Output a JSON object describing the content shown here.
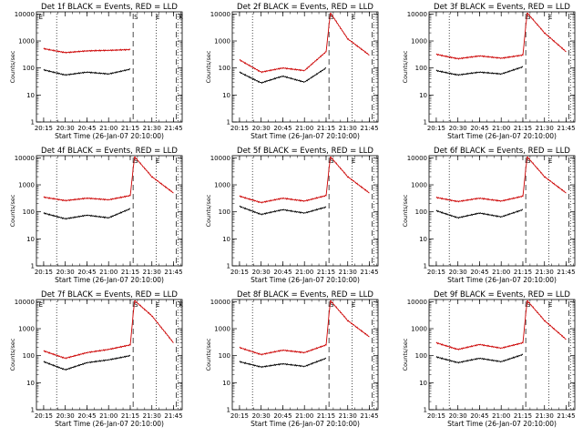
{
  "chart_data": [
    {
      "type": "line",
      "title": "Det 1f BLACK = Events, RED = LLD",
      "xlabel": "Start Time (26-Jan-07 20:10:00)",
      "ylabel": "Counts/sec",
      "x_tick_labels": [
        "20:15",
        "20:30",
        "20:45",
        "21:00",
        "21:15",
        "21:30",
        "21:45"
      ],
      "y_tick_labels": [
        "1",
        "10",
        "100",
        "1000",
        "10000"
      ],
      "ylim": [
        1,
        12000
      ],
      "yscale": "log",
      "flag_labels": [
        "E",
        "S",
        "E",
        "K"
      ],
      "x": [
        "20:15",
        "20:30",
        "20:45",
        "21:00",
        "21:15",
        "21:18",
        "21:30",
        "21:45"
      ],
      "series": [
        {
          "color": "#cc0000",
          "values": [
            520,
            370,
            430,
            450,
            480,
            null,
            null,
            null
          ]
        },
        {
          "color": "#000000",
          "values": [
            85,
            55,
            70,
            60,
            90,
            null,
            null,
            null
          ]
        }
      ]
    },
    {
      "type": "line",
      "title": "Det 2f BLACK = Events, RED = LLD",
      "xlabel": "Start Time (26-Jan-07 20:10:00)",
      "ylabel": "Counts/sec",
      "x_tick_labels": [
        "20:15",
        "20:30",
        "20:45",
        "21:00",
        "21:15",
        "21:30",
        "21:45"
      ],
      "y_tick_labels": [
        "1",
        "10",
        "100",
        "1000",
        "10000"
      ],
      "ylim": [
        1,
        12000
      ],
      "yscale": "log",
      "flag_labels": [
        "S",
        "E"
      ],
      "x": [
        "20:15",
        "20:30",
        "20:45",
        "21:00",
        "21:15",
        "21:18",
        "21:30",
        "21:45"
      ],
      "series": [
        {
          "color": "#cc0000",
          "values": [
            200,
            70,
            100,
            80,
            400,
            11000,
            1200,
            300
          ]
        },
        {
          "color": "#000000",
          "values": [
            70,
            28,
            50,
            30,
            100,
            null,
            null,
            null
          ]
        }
      ]
    },
    {
      "type": "line",
      "title": "Det 3f BLACK = Events, RED = LLD",
      "xlabel": "Start Time (26-Jan-07 20:10:00)",
      "ylabel": "Counts/sec",
      "x_tick_labels": [
        "20:15",
        "20:30",
        "20:45",
        "21:00",
        "21:15",
        "21:30",
        "21:45"
      ],
      "y_tick_labels": [
        "1",
        "10",
        "100",
        "1000",
        "10000"
      ],
      "ylim": [
        1,
        12000
      ],
      "yscale": "log",
      "flag_labels": [
        "S",
        "E"
      ],
      "x": [
        "20:15",
        "20:30",
        "20:45",
        "21:00",
        "21:15",
        "21:18",
        "21:30",
        "21:45"
      ],
      "series": [
        {
          "color": "#cc0000",
          "values": [
            320,
            220,
            280,
            230,
            300,
            11000,
            2000,
            400
          ]
        },
        {
          "color": "#000000",
          "values": [
            80,
            55,
            70,
            60,
            110,
            null,
            null,
            null
          ]
        }
      ]
    },
    {
      "type": "line",
      "title": "Det 4f BLACK = Events, RED = LLD",
      "xlabel": "Start Time (26-Jan-07 20:10:00)",
      "ylabel": "Counts/sec",
      "x_tick_labels": [
        "20:15",
        "20:30",
        "20:45",
        "21:00",
        "21:15",
        "21:30",
        "21:45"
      ],
      "y_tick_labels": [
        "1",
        "10",
        "100",
        "1000",
        "10000"
      ],
      "ylim": [
        1,
        12000
      ],
      "yscale": "log",
      "flag_labels": [
        "S",
        "E"
      ],
      "x": [
        "20:15",
        "20:30",
        "20:45",
        "21:00",
        "21:15",
        "21:18",
        "21:30",
        "21:45"
      ],
      "series": [
        {
          "color": "#cc0000",
          "values": [
            350,
            260,
            320,
            280,
            400,
            11000,
            2000,
            500
          ]
        },
        {
          "color": "#000000",
          "values": [
            90,
            55,
            75,
            60,
            130,
            null,
            null,
            null
          ]
        }
      ]
    },
    {
      "type": "line",
      "title": "Det 5f BLACK = Events, RED = LLD",
      "xlabel": "Start Time (26-Jan-07 20:10:00)",
      "ylabel": "Counts/sec",
      "x_tick_labels": [
        "20:15",
        "20:30",
        "20:45",
        "21:00",
        "21:15",
        "21:30",
        "21:45"
      ],
      "y_tick_labels": [
        "1",
        "10",
        "100",
        "1000",
        "10000"
      ],
      "ylim": [
        1,
        12000
      ],
      "yscale": "log",
      "flag_labels": [
        "S",
        "E"
      ],
      "x": [
        "20:15",
        "20:30",
        "20:45",
        "21:00",
        "21:15",
        "21:18",
        "21:30",
        "21:45"
      ],
      "series": [
        {
          "color": "#cc0000",
          "values": [
            380,
            220,
            320,
            250,
            400,
            11000,
            2000,
            500
          ]
        },
        {
          "color": "#000000",
          "values": [
            160,
            80,
            120,
            90,
            150,
            null,
            null,
            null
          ]
        }
      ]
    },
    {
      "type": "line",
      "title": "Det 6f BLACK = Events, RED = LLD",
      "xlabel": "Start Time (26-Jan-07 20:10:00)",
      "ylabel": "Counts/sec",
      "x_tick_labels": [
        "20:15",
        "20:30",
        "20:45",
        "21:00",
        "21:15",
        "21:30",
        "21:45"
      ],
      "y_tick_labels": [
        "1",
        "10",
        "100",
        "1000",
        "10000"
      ],
      "ylim": [
        1,
        12000
      ],
      "yscale": "log",
      "flag_labels": [
        "S",
        "E"
      ],
      "x": [
        "20:15",
        "20:30",
        "20:45",
        "21:00",
        "21:15",
        "21:18",
        "21:30",
        "21:45"
      ],
      "series": [
        {
          "color": "#cc0000",
          "values": [
            340,
            240,
            320,
            250,
            380,
            11000,
            2000,
            500
          ]
        },
        {
          "color": "#000000",
          "values": [
            110,
            60,
            90,
            65,
            120,
            null,
            null,
            null
          ]
        }
      ]
    },
    {
      "type": "line",
      "title": "Det 7f BLACK = Events, RED = LLD",
      "xlabel": "Start Time (26-Jan-07 20:10:00)",
      "ylabel": "Counts/sec",
      "x_tick_labels": [
        "20:15",
        "20:30",
        "20:45",
        "21:00",
        "21:15",
        "21:30",
        "21:45"
      ],
      "y_tick_labels": [
        "1",
        "10",
        "100",
        "1000",
        "10000"
      ],
      "ylim": [
        1,
        12000
      ],
      "yscale": "log",
      "flag_labels": [
        "E",
        "S",
        "E",
        "K"
      ],
      "x": [
        "20:15",
        "20:30",
        "20:45",
        "21:00",
        "21:15",
        "21:18",
        "21:30",
        "21:45"
      ],
      "series": [
        {
          "color": "#cc0000",
          "values": [
            150,
            80,
            130,
            170,
            250,
            11000,
            3000,
            300
          ]
        },
        {
          "color": "#000000",
          "values": [
            60,
            30,
            55,
            70,
            100,
            null,
            null,
            null
          ]
        }
      ]
    },
    {
      "type": "line",
      "title": "Det 8f BLACK = Events, RED = LLD",
      "xlabel": "Start Time (26-Jan-07 20:10:00)",
      "ylabel": "Counts/sec",
      "x_tick_labels": [
        "20:15",
        "20:30",
        "20:45",
        "21:00",
        "21:15",
        "21:30",
        "21:45"
      ],
      "y_tick_labels": [
        "1",
        "10",
        "100",
        "1000",
        "10000"
      ],
      "ylim": [
        1,
        12000
      ],
      "yscale": "log",
      "flag_labels": [
        "S",
        "E"
      ],
      "x": [
        "20:15",
        "20:30",
        "20:45",
        "21:00",
        "21:15",
        "21:18",
        "21:30",
        "21:45"
      ],
      "series": [
        {
          "color": "#cc0000",
          "values": [
            200,
            110,
            160,
            130,
            250,
            11000,
            2000,
            500
          ]
        },
        {
          "color": "#000000",
          "values": [
            60,
            38,
            50,
            40,
            80,
            null,
            null,
            null
          ]
        }
      ]
    },
    {
      "type": "line",
      "title": "Det 9f BLACK = Events, RED = LLD",
      "xlabel": "Start Time (26-Jan-07 20:10:00)",
      "ylabel": "Counts/sec",
      "x_tick_labels": [
        "20:15",
        "20:30",
        "20:45",
        "21:00",
        "21:15",
        "21:30",
        "21:45"
      ],
      "y_tick_labels": [
        "1",
        "10",
        "100",
        "1000",
        "10000"
      ],
      "ylim": [
        1,
        12000
      ],
      "yscale": "log",
      "flag_labels": [
        "S",
        "E"
      ],
      "x": [
        "20:15",
        "20:30",
        "20:45",
        "21:00",
        "21:15",
        "21:18",
        "21:30",
        "21:45"
      ],
      "series": [
        {
          "color": "#cc0000",
          "values": [
            300,
            170,
            260,
            190,
            300,
            11000,
            2000,
            400
          ]
        },
        {
          "color": "#000000",
          "values": [
            90,
            55,
            80,
            60,
            110,
            null,
            null,
            null
          ]
        }
      ]
    }
  ]
}
